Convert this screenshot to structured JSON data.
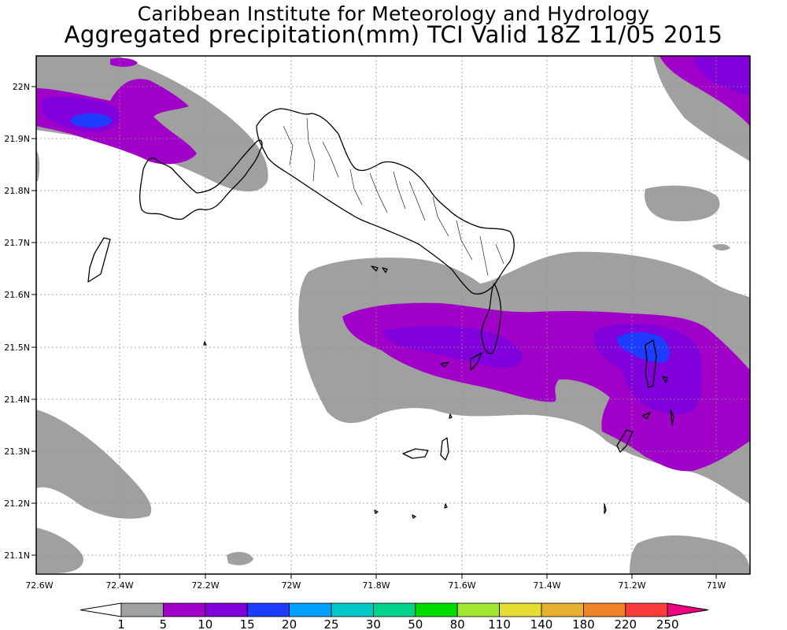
{
  "header": {
    "title": "Caribbean Institute for Meteorology and Hydrology",
    "subtitle": "Aggregated precipitation(mm) TCI Valid 18Z 11/05 2015"
  },
  "axes": {
    "lon_ticks": [
      "72.6W",
      "72.4W",
      "72.2W",
      "72W",
      "71.8W",
      "71.6W",
      "71.4W",
      "71.2W",
      "71W"
    ],
    "lat_ticks": [
      "22N",
      "21.9N",
      "21.8N",
      "21.7N",
      "21.6N",
      "21.5N",
      "21.4N",
      "21.3N",
      "21.2N",
      "21.1N"
    ]
  },
  "colorbar": {
    "labels": [
      "1",
      "5",
      "10",
      "15",
      "20",
      "25",
      "30",
      "50",
      "80",
      "110",
      "140",
      "180",
      "220",
      "250"
    ],
    "colors": [
      "#a0a0a0",
      "#a000c8",
      "#8200dc",
      "#1e3cff",
      "#00a0ff",
      "#00c8c8",
      "#00d28c",
      "#00dc00",
      "#a0e632",
      "#e6dc32",
      "#e6af2d",
      "#f08228",
      "#fa3c3c",
      "#f00082"
    ]
  },
  "precip_colors": {
    "light": "#a0a0a0",
    "moderate": "#a000c8",
    "heavy": "#8200dc",
    "very_heavy": "#1e3cff"
  }
}
